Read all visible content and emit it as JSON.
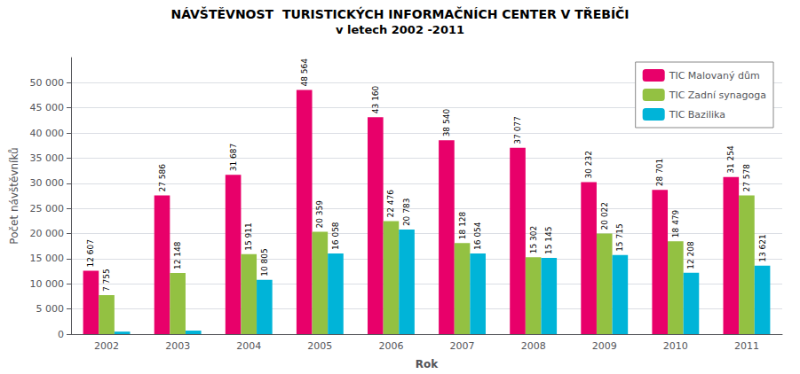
{
  "chart_data": {
    "type": "bar",
    "title": "NÁVŠTĚVNOST  TURISTICKÝCH INFORMAČNÍCH CENTER V TŘEBÍČI",
    "subtitle": "v letech 2002 -2011",
    "x_label": "Rok",
    "y_label": "Počet návštěvníků",
    "categories": [
      "2002",
      "2003",
      "2004",
      "2005",
      "2006",
      "2007",
      "2008",
      "2009",
      "2010",
      "2011"
    ],
    "series": [
      {
        "name": "TIC Malovaný dům",
        "color": "#E8006A",
        "values": [
          12607,
          27586,
          31687,
          48564,
          43160,
          38540,
          37077,
          30232,
          28701,
          31254
        ],
        "value_labels": [
          "12 607",
          "27 586",
          "31 687",
          "48 564",
          "43 160",
          "38 540",
          "37 077",
          "30 232",
          "28 701",
          "31 254"
        ]
      },
      {
        "name": "TIC Zadní synagoga",
        "color": "#93C142",
        "values": [
          7755,
          12148,
          15911,
          20359,
          22476,
          18128,
          15302,
          20022,
          18479,
          27578
        ],
        "value_labels": [
          "7 755",
          "12 148",
          "15 911",
          "20 359",
          "22 476",
          "18 128",
          "15 302",
          "20 022",
          "18 479",
          "27 578"
        ]
      },
      {
        "name": "TIC Bazilika",
        "color": "#00B4D8",
        "values": [
          500,
          700,
          10805,
          16058,
          20783,
          16054,
          15145,
          15715,
          12208,
          13621
        ],
        "value_labels": [
          null,
          null,
          "10 805",
          "16 058",
          "20 783",
          "16 054",
          "15 145",
          "15 715",
          "12 208",
          "13 621"
        ]
      }
    ],
    "ylim": [
      0,
      55000
    ],
    "yticks": [
      0,
      {
        "value": 5000,
        "label": "5 000"
      },
      {
        "value": 10000,
        "label": "10 000"
      },
      {
        "value": 15000,
        "label": "15 000"
      },
      {
        "value": 20000,
        "label": "20 000"
      },
      {
        "value": 25000,
        "label": "25 000"
      },
      {
        "value": 30000,
        "label": "30 000"
      },
      {
        "value": 35000,
        "label": "35 000"
      },
      {
        "value": 40000,
        "label": "40 000"
      },
      {
        "value": 45000,
        "label": "45 000"
      },
      {
        "value": 50000,
        "label": "50 000"
      }
    ],
    "grid": true,
    "legend": "upper right",
    "data_labels": true
  }
}
